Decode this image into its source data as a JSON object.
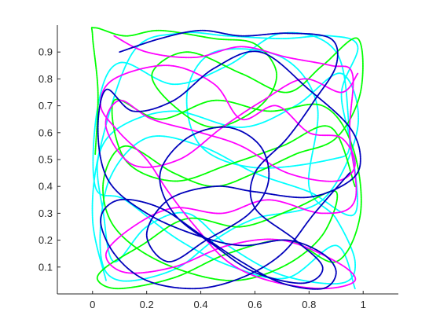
{
  "chart_data": {
    "type": "line",
    "title": "",
    "xlabel": "",
    "ylabel": "",
    "xlim": [
      -0.13,
      1.13
    ],
    "ylim": [
      0,
      1
    ],
    "x_ticks": [
      0,
      0.2,
      0.4,
      0.6,
      0.8,
      1
    ],
    "x_tick_labels": [
      "0",
      "0.2",
      "0.4",
      "0.6",
      "0.8",
      "1"
    ],
    "y_ticks": [
      0.1,
      0.2,
      0.3,
      0.4,
      0.5,
      0.6,
      0.7,
      0.8,
      0.9
    ],
    "y_tick_labels": [
      "0.1",
      "0.2",
      "0.3",
      "0.4",
      "0.5",
      "0.6",
      "0.7",
      "0.8",
      "0.9"
    ],
    "grid": false,
    "legend": "none",
    "box": false,
    "series": [
      {
        "color": "#00ffff",
        "x": [
          0.05,
          0.0,
          0.03,
          0.15,
          0.32,
          0.5,
          0.7,
          0.88,
          0.98,
          0.92,
          0.95,
          0.88,
          0.6,
          0.4,
          0.35,
          0.45,
          0.7,
          0.83,
          0.8,
          0.9,
          0.97,
          0.92,
          0.7,
          0.5,
          0.35,
          0.2,
          0.08,
          0.04,
          0.02,
          0.1,
          0.3,
          0.55,
          0.75,
          0.92,
          0.98,
          0.85,
          0.6,
          0.45,
          0.3,
          0.1,
          0.03,
          0.06,
          0.2,
          0.4,
          0.6,
          0.8,
          0.97,
          0.95,
          0.9,
          0.7,
          0.5,
          0.3,
          0.1,
          0.02,
          0.01,
          0.12,
          0.32,
          0.52,
          0.72,
          0.9,
          0.97
        ],
        "y": [
          0.05,
          0.28,
          0.55,
          0.9,
          0.97,
          0.96,
          0.95,
          0.96,
          0.92,
          0.75,
          0.55,
          0.5,
          0.47,
          0.55,
          0.75,
          0.9,
          0.88,
          0.7,
          0.4,
          0.28,
          0.12,
          0.04,
          0.07,
          0.18,
          0.3,
          0.25,
          0.12,
          0.3,
          0.5,
          0.62,
          0.68,
          0.62,
          0.7,
          0.82,
          0.62,
          0.35,
          0.28,
          0.2,
          0.09,
          0.05,
          0.15,
          0.42,
          0.58,
          0.55,
          0.45,
          0.38,
          0.3,
          0.6,
          0.9,
          0.97,
          0.85,
          0.78,
          0.86,
          0.7,
          0.4,
          0.35,
          0.2,
          0.1,
          0.06,
          0.18,
          0.02
        ]
      },
      {
        "color": "#00ff00",
        "x": [
          0.01,
          0.02,
          0.0,
          0.01,
          0.12,
          0.25,
          0.45,
          0.6,
          0.68,
          0.62,
          0.45,
          0.3,
          0.22,
          0.35,
          0.55,
          0.72,
          0.85,
          0.98,
          0.99,
          0.9,
          0.75,
          0.6,
          0.45,
          0.3,
          0.12,
          0.04,
          0.08,
          0.25,
          0.5,
          0.7,
          0.85,
          0.9,
          0.75,
          0.55,
          0.35,
          0.18,
          0.05,
          0.02,
          0.1,
          0.3,
          0.5,
          0.72,
          0.9,
          0.99,
          0.96,
          0.85,
          0.65,
          0.45,
          0.25,
          0.08,
          0.12,
          0.3,
          0.5,
          0.7,
          0.88,
          0.97
        ],
        "y": [
          0.52,
          0.75,
          0.96,
          0.99,
          0.96,
          0.98,
          0.95,
          0.93,
          0.82,
          0.7,
          0.62,
          0.7,
          0.82,
          0.9,
          0.82,
          0.75,
          0.85,
          0.95,
          0.75,
          0.58,
          0.52,
          0.45,
          0.4,
          0.45,
          0.55,
          0.42,
          0.25,
          0.12,
          0.05,
          0.1,
          0.22,
          0.38,
          0.32,
          0.25,
          0.28,
          0.18,
          0.1,
          0.05,
          0.02,
          0.06,
          0.15,
          0.2,
          0.12,
          0.3,
          0.55,
          0.7,
          0.68,
          0.72,
          0.65,
          0.72,
          0.5,
          0.42,
          0.48,
          0.55,
          0.62,
          0.4
        ]
      },
      {
        "color": "#ff00ff",
        "x": [
          0.08,
          0.2,
          0.38,
          0.55,
          0.72,
          0.88,
          0.96,
          0.95,
          0.97,
          0.85,
          0.65,
          0.48,
          0.3,
          0.15,
          0.05,
          0.12,
          0.3,
          0.5,
          0.7,
          0.9,
          0.97,
          0.85,
          0.65,
          0.5,
          0.38,
          0.28,
          0.2,
          0.1,
          0.03,
          0.08,
          0.28,
          0.45,
          0.55,
          0.68,
          0.8,
          0.92,
          0.97,
          0.9,
          0.72,
          0.55,
          0.4,
          0.22,
          0.1,
          0.05,
          0.15,
          0.32,
          0.48,
          0.63,
          0.78,
          0.92,
          0.98
        ],
        "y": [
          0.96,
          0.9,
          0.88,
          0.92,
          0.88,
          0.85,
          0.82,
          0.6,
          0.35,
          0.3,
          0.35,
          0.3,
          0.32,
          0.25,
          0.15,
          0.08,
          0.1,
          0.18,
          0.2,
          0.12,
          0.05,
          0.02,
          0.05,
          0.12,
          0.25,
          0.38,
          0.5,
          0.6,
          0.7,
          0.8,
          0.85,
          0.78,
          0.65,
          0.7,
          0.6,
          0.58,
          0.48,
          0.42,
          0.45,
          0.55,
          0.6,
          0.65,
          0.72,
          0.62,
          0.48,
          0.5,
          0.62,
          0.72,
          0.8,
          0.75,
          0.82
        ]
      },
      {
        "color": "#0000bb",
        "x": [
          0.1,
          0.25,
          0.4,
          0.55,
          0.72,
          0.88,
          0.9,
          0.82,
          0.72,
          0.6,
          0.6,
          0.75,
          0.85,
          0.78,
          0.6,
          0.45,
          0.3,
          0.25,
          0.35,
          0.5,
          0.62,
          0.65,
          0.58,
          0.42,
          0.28,
          0.2,
          0.28,
          0.45,
          0.6,
          0.8,
          0.95,
          0.99,
          0.95,
          0.8,
          0.62,
          0.45,
          0.3,
          0.15,
          0.05,
          0.02,
          0.06,
          0.2,
          0.38,
          0.55,
          0.72,
          0.85,
          0.9,
          0.85,
          0.7,
          0.55,
          0.4,
          0.25,
          0.1,
          0.03,
          0.08,
          0.2,
          0.38,
          0.55,
          0.7,
          0.82,
          0.95
        ],
        "y": [
          0.9,
          0.95,
          0.98,
          0.96,
          0.97,
          0.95,
          0.85,
          0.72,
          0.58,
          0.45,
          0.32,
          0.2,
          0.1,
          0.04,
          0.08,
          0.18,
          0.3,
          0.45,
          0.58,
          0.62,
          0.55,
          0.42,
          0.3,
          0.2,
          0.12,
          0.22,
          0.35,
          0.4,
          0.38,
          0.36,
          0.42,
          0.5,
          0.62,
          0.76,
          0.9,
          0.84,
          0.72,
          0.68,
          0.76,
          0.6,
          0.42,
          0.3,
          0.22,
          0.18,
          0.2,
          0.15,
          0.08,
          0.02,
          0.04,
          0.12,
          0.22,
          0.32,
          0.35,
          0.28,
          0.15,
          0.05,
          0.02,
          0.06,
          0.15,
          0.3,
          0.45
        ]
      }
    ]
  }
}
